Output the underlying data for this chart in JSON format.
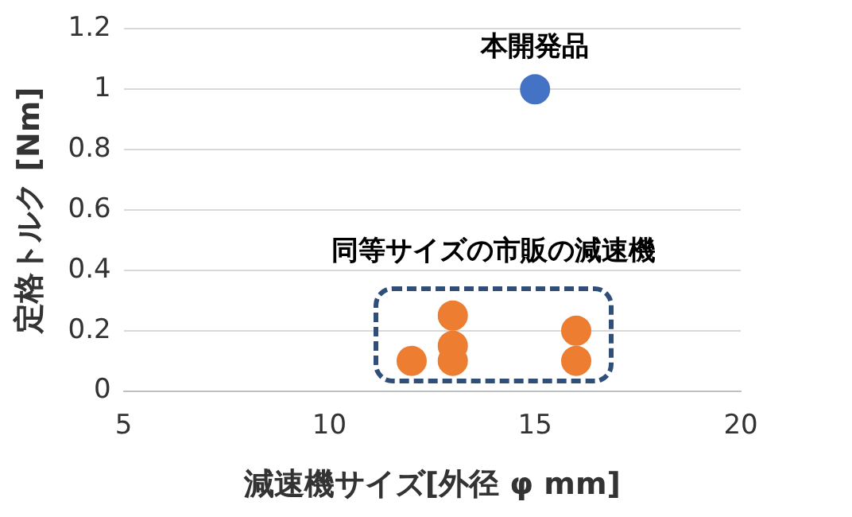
{
  "chart_data": {
    "type": "scatter",
    "xlabel": "減速機サイズ[外径 φ mm]",
    "ylabel": "定格トルク [Nm]",
    "series": [
      {
        "color": "#4472c4",
        "x": [
          15
        ],
        "values": [
          1
        ]
      },
      {
        "color": "#ed7d31",
        "x": [
          12,
          13,
          13,
          13,
          16,
          16
        ],
        "values": [
          0.1,
          0.25,
          0.15,
          0.1,
          0.2,
          0.1
        ]
      }
    ],
    "xlim": [
      5,
      20
    ],
    "xticks": [
      5,
      10,
      15,
      20
    ],
    "ylim": [
      0,
      1.2
    ],
    "yticks": [
      0,
      0.2,
      0.4,
      0.6,
      0.8,
      1,
      1.2
    ],
    "grid": "y",
    "marker": "circle",
    "annotations": [
      "本開発品",
      "同等サイズの市販の減速機"
    ]
  }
}
